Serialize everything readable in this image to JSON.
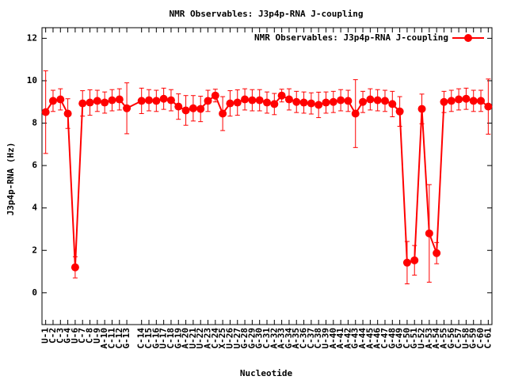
{
  "chart_data": {
    "type": "errorbar-line",
    "title": "NMR Observables: J3p4p-RNA J-coupling",
    "xlabel": "Nucleotide",
    "ylabel": "J3p4p-RNA (Hz)",
    "xlim": [
      0.5,
      61.5
    ],
    "ylim": [
      -1.5,
      12.5
    ],
    "yticks": [
      0,
      2,
      4,
      6,
      8,
      10,
      12
    ],
    "xticks": [
      {
        "value": 1,
        "label": "U-1"
      },
      {
        "value": 2,
        "label": "C-2"
      },
      {
        "value": 3,
        "label": "C-3"
      },
      {
        "value": 4,
        "label": "G-4"
      },
      {
        "value": 5,
        "label": "U-6"
      },
      {
        "value": 6,
        "label": "C-7"
      },
      {
        "value": 7,
        "label": "C-8"
      },
      {
        "value": 8,
        "label": "U-9"
      },
      {
        "value": 9,
        "label": "A-10"
      },
      {
        "value": 10,
        "label": "C-11"
      },
      {
        "value": 11,
        "label": "C-12"
      },
      {
        "value": 12,
        "label": "G-13"
      },
      {
        "value": 14,
        "label": "C-14"
      },
      {
        "value": 15,
        "label": "C-15"
      },
      {
        "value": 16,
        "label": "G-16"
      },
      {
        "value": 17,
        "label": "U-17"
      },
      {
        "value": 18,
        "label": "C-18"
      },
      {
        "value": 19,
        "label": "G-19"
      },
      {
        "value": 20,
        "label": "A-20"
      },
      {
        "value": 21,
        "label": "U-21"
      },
      {
        "value": 22,
        "label": "U-22"
      },
      {
        "value": 23,
        "label": "A-23"
      },
      {
        "value": 24,
        "label": "C-24"
      },
      {
        "value": 25,
        "label": "X-25"
      },
      {
        "value": 26,
        "label": "U-26"
      },
      {
        "value": 27,
        "label": "U-27"
      },
      {
        "value": 28,
        "label": "G-28"
      },
      {
        "value": 29,
        "label": "G-29"
      },
      {
        "value": 30,
        "label": "G-30"
      },
      {
        "value": 31,
        "label": "C-31"
      },
      {
        "value": 32,
        "label": "A-32"
      },
      {
        "value": 33,
        "label": "A-33"
      },
      {
        "value": 34,
        "label": "G-34"
      },
      {
        "value": 35,
        "label": "A-35"
      },
      {
        "value": 36,
        "label": "C-36"
      },
      {
        "value": 37,
        "label": "C-37"
      },
      {
        "value": 38,
        "label": "C-38"
      },
      {
        "value": 39,
        "label": "U-39"
      },
      {
        "value": 40,
        "label": "A-40"
      },
      {
        "value": 41,
        "label": "A-41"
      },
      {
        "value": 42,
        "label": "A-42"
      },
      {
        "value": 43,
        "label": "G-43"
      },
      {
        "value": 44,
        "label": "A-44"
      },
      {
        "value": 45,
        "label": "A-45"
      },
      {
        "value": 46,
        "label": "A-46"
      },
      {
        "value": 47,
        "label": "C-47"
      },
      {
        "value": 48,
        "label": "G-48"
      },
      {
        "value": 49,
        "label": "G-49"
      },
      {
        "value": 50,
        "label": "C-50"
      },
      {
        "value": 51,
        "label": "G-51"
      },
      {
        "value": 52,
        "label": "U-52"
      },
      {
        "value": 53,
        "label": "A-53"
      },
      {
        "value": 54,
        "label": "A-54"
      },
      {
        "value": 55,
        "label": "A-55"
      },
      {
        "value": 56,
        "label": "G-56"
      },
      {
        "value": 57,
        "label": "C-57"
      },
      {
        "value": 58,
        "label": "U-58"
      },
      {
        "value": 59,
        "label": "G-59"
      },
      {
        "value": 60,
        "label": "C-60"
      },
      {
        "value": 61,
        "label": "C-61"
      }
    ],
    "legend": "upper right",
    "series": [
      {
        "name": "NMR Observables: J3p4p-RNA J-coupling",
        "color": "#ff0000",
        "x": [
          1,
          2,
          3,
          4,
          5,
          6,
          7,
          8,
          9,
          10,
          11,
          12,
          14,
          15,
          16,
          17,
          18,
          19,
          20,
          21,
          22,
          23,
          24,
          25,
          26,
          27,
          28,
          29,
          30,
          31,
          32,
          33,
          34,
          35,
          36,
          37,
          38,
          39,
          40,
          41,
          42,
          43,
          44,
          45,
          46,
          47,
          48,
          49,
          50,
          51,
          52,
          53,
          54,
          55,
          56,
          57,
          58,
          59,
          60,
          61
        ],
        "values": [
          8.52,
          9.05,
          9.12,
          8.45,
          1.2,
          8.93,
          8.97,
          9.05,
          8.97,
          9.08,
          9.12,
          8.7,
          9.05,
          9.08,
          9.05,
          9.15,
          9.08,
          8.78,
          8.6,
          8.7,
          8.67,
          9.05,
          9.3,
          8.45,
          8.93,
          8.97,
          9.12,
          9.08,
          9.08,
          8.97,
          8.9,
          9.3,
          9.12,
          9.0,
          8.97,
          8.93,
          8.86,
          8.97,
          9.0,
          9.08,
          9.05,
          8.45,
          9.0,
          9.12,
          9.08,
          9.05,
          8.9,
          8.55,
          1.42,
          1.53,
          8.67,
          2.8,
          1.87,
          9.0,
          9.05,
          9.12,
          9.15,
          9.05,
          9.05,
          8.78
        ],
        "errors": [
          1.95,
          0.5,
          0.5,
          0.7,
          0.5,
          0.6,
          0.6,
          0.5,
          0.5,
          0.5,
          0.5,
          1.2,
          0.6,
          0.5,
          0.5,
          0.5,
          0.5,
          0.6,
          0.7,
          0.6,
          0.6,
          0.5,
          0.3,
          0.8,
          0.6,
          0.6,
          0.5,
          0.5,
          0.5,
          0.5,
          0.5,
          0.3,
          0.5,
          0.5,
          0.5,
          0.5,
          0.6,
          0.5,
          0.5,
          0.5,
          0.5,
          1.6,
          0.5,
          0.5,
          0.5,
          0.5,
          0.6,
          0.7,
          1.0,
          0.7,
          0.7,
          2.3,
          0.5,
          0.5,
          0.5,
          0.5,
          0.5,
          0.5,
          0.5,
          1.3
        ]
      }
    ]
  }
}
